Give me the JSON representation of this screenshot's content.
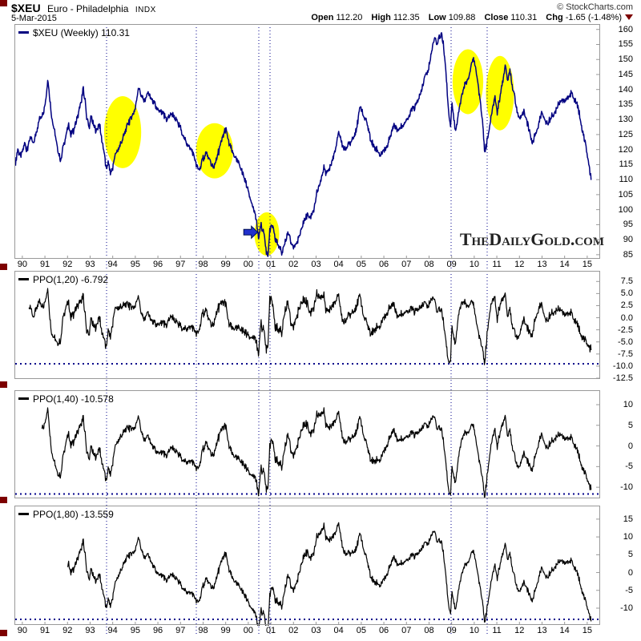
{
  "header": {
    "symbol": "$XEU",
    "name": "Euro - Philadelphia",
    "exchange": "INDX",
    "copyright": "© StockCharts.com",
    "date": "5-Mar-2015",
    "quote": {
      "open_label": "Open",
      "open": "112.20",
      "high_label": "High",
      "high": "112.35",
      "low_label": "Low",
      "low": "109.88",
      "close_label": "Close",
      "close": "110.31",
      "chg_label": "Chg",
      "chg": "-1.65 (-1.48%)"
    }
  },
  "colors": {
    "price_line": "#000080",
    "ppo_line": "#000000",
    "gridline": "#00008b",
    "support_line": "#00008b",
    "highlight": "#ffff00",
    "arrow_fill": "#2130cc",
    "arrow_outline": "#001050",
    "maroon": "#7d0000",
    "border": "#999999",
    "watermark_color": "#222222"
  },
  "chart_data": {
    "type": "line",
    "title": "$XEU (Weekly)",
    "x_unit": "year",
    "x_range": [
      1989.65,
      2015.25
    ],
    "x_tick_labels": [
      "90",
      "91",
      "92",
      "93",
      "94",
      "95",
      "96",
      "97",
      "98",
      "99",
      "00",
      "01",
      "02",
      "03",
      "04",
      "05",
      "06",
      "07",
      "08",
      "09",
      "10",
      "11",
      "12",
      "13",
      "14",
      "15"
    ],
    "vertical_dotted_lines_years": [
      1993.73,
      1997.7,
      2000.46,
      2000.97,
      2008.98,
      2010.58
    ],
    "panels": [
      {
        "key": "price",
        "legend_label": "$XEU (Weekly)",
        "legend_value": "110.31",
        "y_range": [
          83.9,
          161.8
        ],
        "y_tick_labels": [
          "160",
          "155",
          "150",
          "145",
          "140",
          "135",
          "130",
          "125",
          "120",
          "115",
          "110",
          "105",
          "100",
          "95",
          "90",
          "85"
        ],
        "series_points": [
          [
            1989.7,
            116
          ],
          [
            1989.8,
            120
          ],
          [
            1989.9,
            118
          ],
          [
            1990.0,
            119
          ],
          [
            1990.1,
            122
          ],
          [
            1990.2,
            120
          ],
          [
            1990.35,
            124
          ],
          [
            1990.5,
            122
          ],
          [
            1990.65,
            127
          ],
          [
            1990.8,
            131
          ],
          [
            1990.95,
            133
          ],
          [
            1991.05,
            137
          ],
          [
            1991.12,
            144
          ],
          [
            1991.2,
            138
          ],
          [
            1991.3,
            131
          ],
          [
            1991.45,
            125
          ],
          [
            1991.55,
            120
          ],
          [
            1991.7,
            116
          ],
          [
            1991.8,
            121
          ],
          [
            1991.95,
            125
          ],
          [
            1992.05,
            128
          ],
          [
            1992.15,
            125
          ],
          [
            1992.3,
            127
          ],
          [
            1992.45,
            131
          ],
          [
            1992.6,
            136
          ],
          [
            1992.7,
            140
          ],
          [
            1992.78,
            136
          ],
          [
            1992.85,
            131
          ],
          [
            1992.95,
            127
          ],
          [
            1993.05,
            131
          ],
          [
            1993.15,
            128
          ],
          [
            1993.3,
            126
          ],
          [
            1993.4,
            129
          ],
          [
            1993.5,
            124
          ],
          [
            1993.6,
            120
          ],
          [
            1993.72,
            113
          ],
          [
            1993.8,
            116
          ],
          [
            1993.9,
            112
          ],
          [
            1994.0,
            114
          ],
          [
            1994.1,
            118
          ],
          [
            1994.25,
            120
          ],
          [
            1994.4,
            123
          ],
          [
            1994.55,
            126
          ],
          [
            1994.7,
            129
          ],
          [
            1994.85,
            131
          ],
          [
            1995.0,
            134
          ],
          [
            1995.15,
            141
          ],
          [
            1995.25,
            138
          ],
          [
            1995.4,
            136
          ],
          [
            1995.55,
            139
          ],
          [
            1995.7,
            137
          ],
          [
            1995.85,
            135
          ],
          [
            1996.0,
            133
          ],
          [
            1996.2,
            132
          ],
          [
            1996.4,
            130
          ],
          [
            1996.6,
            132
          ],
          [
            1996.8,
            130
          ],
          [
            1997.0,
            127
          ],
          [
            1997.15,
            124
          ],
          [
            1997.3,
            122
          ],
          [
            1997.5,
            120
          ],
          [
            1997.7,
            115
          ],
          [
            1997.85,
            113
          ],
          [
            1998.0,
            117
          ],
          [
            1998.15,
            119
          ],
          [
            1998.3,
            116
          ],
          [
            1998.45,
            114
          ],
          [
            1998.6,
            117
          ],
          [
            1998.75,
            121
          ],
          [
            1998.9,
            125
          ],
          [
            1999.0,
            127
          ],
          [
            1999.15,
            122
          ],
          [
            1999.3,
            119
          ],
          [
            1999.45,
            117
          ],
          [
            1999.6,
            115
          ],
          [
            1999.75,
            112
          ],
          [
            1999.9,
            109
          ],
          [
            2000.05,
            105
          ],
          [
            2000.2,
            101
          ],
          [
            2000.35,
            97
          ],
          [
            2000.45,
            90
          ],
          [
            2000.55,
            95
          ],
          [
            2000.7,
            92
          ],
          [
            2000.8,
            86
          ],
          [
            2000.87,
            85
          ],
          [
            2000.95,
            93
          ],
          [
            2001.05,
            95
          ],
          [
            2001.2,
            90
          ],
          [
            2001.35,
            88
          ],
          [
            2001.5,
            85.5
          ],
          [
            2001.6,
            89
          ],
          [
            2001.75,
            92
          ],
          [
            2001.9,
            89
          ],
          [
            2002.0,
            87.5
          ],
          [
            2002.15,
            89
          ],
          [
            2002.3,
            92
          ],
          [
            2002.45,
            96
          ],
          [
            2002.6,
            98
          ],
          [
            2002.75,
            97.5
          ],
          [
            2002.9,
            100
          ],
          [
            2003.05,
            106
          ],
          [
            2003.2,
            109
          ],
          [
            2003.35,
            114
          ],
          [
            2003.45,
            112
          ],
          [
            2003.6,
            114
          ],
          [
            2003.75,
            117
          ],
          [
            2003.9,
            121
          ],
          [
            2004.0,
            126
          ],
          [
            2004.1,
            123
          ],
          [
            2004.25,
            120
          ],
          [
            2004.4,
            121
          ],
          [
            2004.55,
            123
          ],
          [
            2004.7,
            125
          ],
          [
            2004.85,
            129
          ],
          [
            2004.95,
            135
          ],
          [
            2005.1,
            131
          ],
          [
            2005.25,
            129
          ],
          [
            2005.4,
            124
          ],
          [
            2005.55,
            121
          ],
          [
            2005.7,
            120
          ],
          [
            2005.85,
            118
          ],
          [
            2006.0,
            120
          ],
          [
            2006.15,
            121
          ],
          [
            2006.3,
            125
          ],
          [
            2006.45,
            128
          ],
          [
            2006.6,
            127
          ],
          [
            2006.75,
            127.5
          ],
          [
            2006.9,
            129
          ],
          [
            2007.05,
            130
          ],
          [
            2007.2,
            133
          ],
          [
            2007.35,
            134
          ],
          [
            2007.5,
            136
          ],
          [
            2007.65,
            139
          ],
          [
            2007.8,
            144
          ],
          [
            2007.95,
            146
          ],
          [
            2008.1,
            152
          ],
          [
            2008.25,
            158
          ],
          [
            2008.35,
            155
          ],
          [
            2008.45,
            157
          ],
          [
            2008.55,
            159
          ],
          [
            2008.65,
            154
          ],
          [
            2008.75,
            146
          ],
          [
            2008.85,
            134
          ],
          [
            2008.95,
            128
          ],
          [
            2009.02,
            136
          ],
          [
            2009.1,
            130
          ],
          [
            2009.18,
            126
          ],
          [
            2009.3,
            132
          ],
          [
            2009.45,
            138
          ],
          [
            2009.6,
            142
          ],
          [
            2009.75,
            144
          ],
          [
            2009.9,
            149
          ],
          [
            2009.97,
            151
          ],
          [
            2010.1,
            145
          ],
          [
            2010.25,
            137
          ],
          [
            2010.38,
            128
          ],
          [
            2010.47,
            119
          ],
          [
            2010.57,
            123
          ],
          [
            2010.7,
            128
          ],
          [
            2010.82,
            134
          ],
          [
            2010.92,
            137
          ],
          [
            2011.02,
            132
          ],
          [
            2011.12,
            137
          ],
          [
            2011.25,
            142
          ],
          [
            2011.37,
            148
          ],
          [
            2011.48,
            143
          ],
          [
            2011.58,
            146
          ],
          [
            2011.7,
            141
          ],
          [
            2011.82,
            136
          ],
          [
            2011.95,
            131
          ],
          [
            2012.05,
            130
          ],
          [
            2012.2,
            133
          ],
          [
            2012.35,
            129
          ],
          [
            2012.45,
            126
          ],
          [
            2012.57,
            122
          ],
          [
            2012.7,
            125
          ],
          [
            2012.85,
            128
          ],
          [
            2013.0,
            133
          ],
          [
            2013.1,
            130
          ],
          [
            2013.25,
            128.5
          ],
          [
            2013.4,
            131
          ],
          [
            2013.55,
            132
          ],
          [
            2013.7,
            135
          ],
          [
            2013.85,
            136.5
          ],
          [
            2014.0,
            136
          ],
          [
            2014.15,
            137.5
          ],
          [
            2014.3,
            139
          ],
          [
            2014.42,
            137
          ],
          [
            2014.55,
            135
          ],
          [
            2014.65,
            132
          ],
          [
            2014.75,
            128
          ],
          [
            2014.85,
            124
          ],
          [
            2014.95,
            121
          ],
          [
            2015.05,
            116
          ],
          [
            2015.12,
            112.5
          ],
          [
            2015.17,
            110.3
          ]
        ]
      },
      {
        "key": "ppo20",
        "legend_label": "PPO(1,20)",
        "legend_value": "-6.792",
        "period": 20,
        "derived_from": "price",
        "formula": "PPO(1,n) = 100 * (close - EMA_n) / EMA_n",
        "y_range": [
          -12.5,
          9.7
        ],
        "y_tick_labels": [
          "7.5",
          "5.0",
          "2.5",
          "0.0",
          "-2.5",
          "-5.0",
          "-7.5",
          "-10.0",
          "-12.5"
        ],
        "support_line_y": -9.5
      },
      {
        "key": "ppo40",
        "legend_label": "PPO(1,40)",
        "legend_value": "-10.578",
        "period": 40,
        "derived_from": "price",
        "formula": "PPO(1,n) = 100 * (close - EMA_n) / EMA_n",
        "y_range": [
          -12.5,
          13.5
        ],
        "y_tick_labels": [
          "10",
          "5",
          "0",
          "-5",
          "-10"
        ],
        "support_line_y": -11.6
      },
      {
        "key": "ppo80",
        "legend_label": "PPO(1,80)",
        "legend_value": "-13.559",
        "period": 80,
        "derived_from": "price",
        "formula": "PPO(1,n) = 100 * (close - EMA_n) / EMA_n",
        "y_range": [
          -14.5,
          18.8
        ],
        "y_tick_labels": [
          "15",
          "10",
          "5",
          "0",
          "-5",
          "-10"
        ],
        "support_line_y": -13.1
      }
    ],
    "annotations": {
      "ellipses": [
        {
          "t": 1994.44,
          "v": 125.8,
          "rt": 0.82,
          "rv": 12.0
        },
        {
          "t": 1998.51,
          "v": 119.6,
          "rt": 0.82,
          "rv": 9.2
        },
        {
          "t": 2000.82,
          "v": 91.9,
          "rt": 0.55,
          "rv": 7.2
        },
        {
          "t": 2009.72,
          "v": 142.6,
          "rt": 0.68,
          "rv": 10.8
        },
        {
          "t": 2011.14,
          "v": 138.8,
          "rt": 0.62,
          "rv": 12.4
        }
      ],
      "arrow": {
        "t_tail": 1999.8,
        "t_tip": 2000.42,
        "v": 92.5
      },
      "watermark": "TheDailyGold.com"
    }
  }
}
